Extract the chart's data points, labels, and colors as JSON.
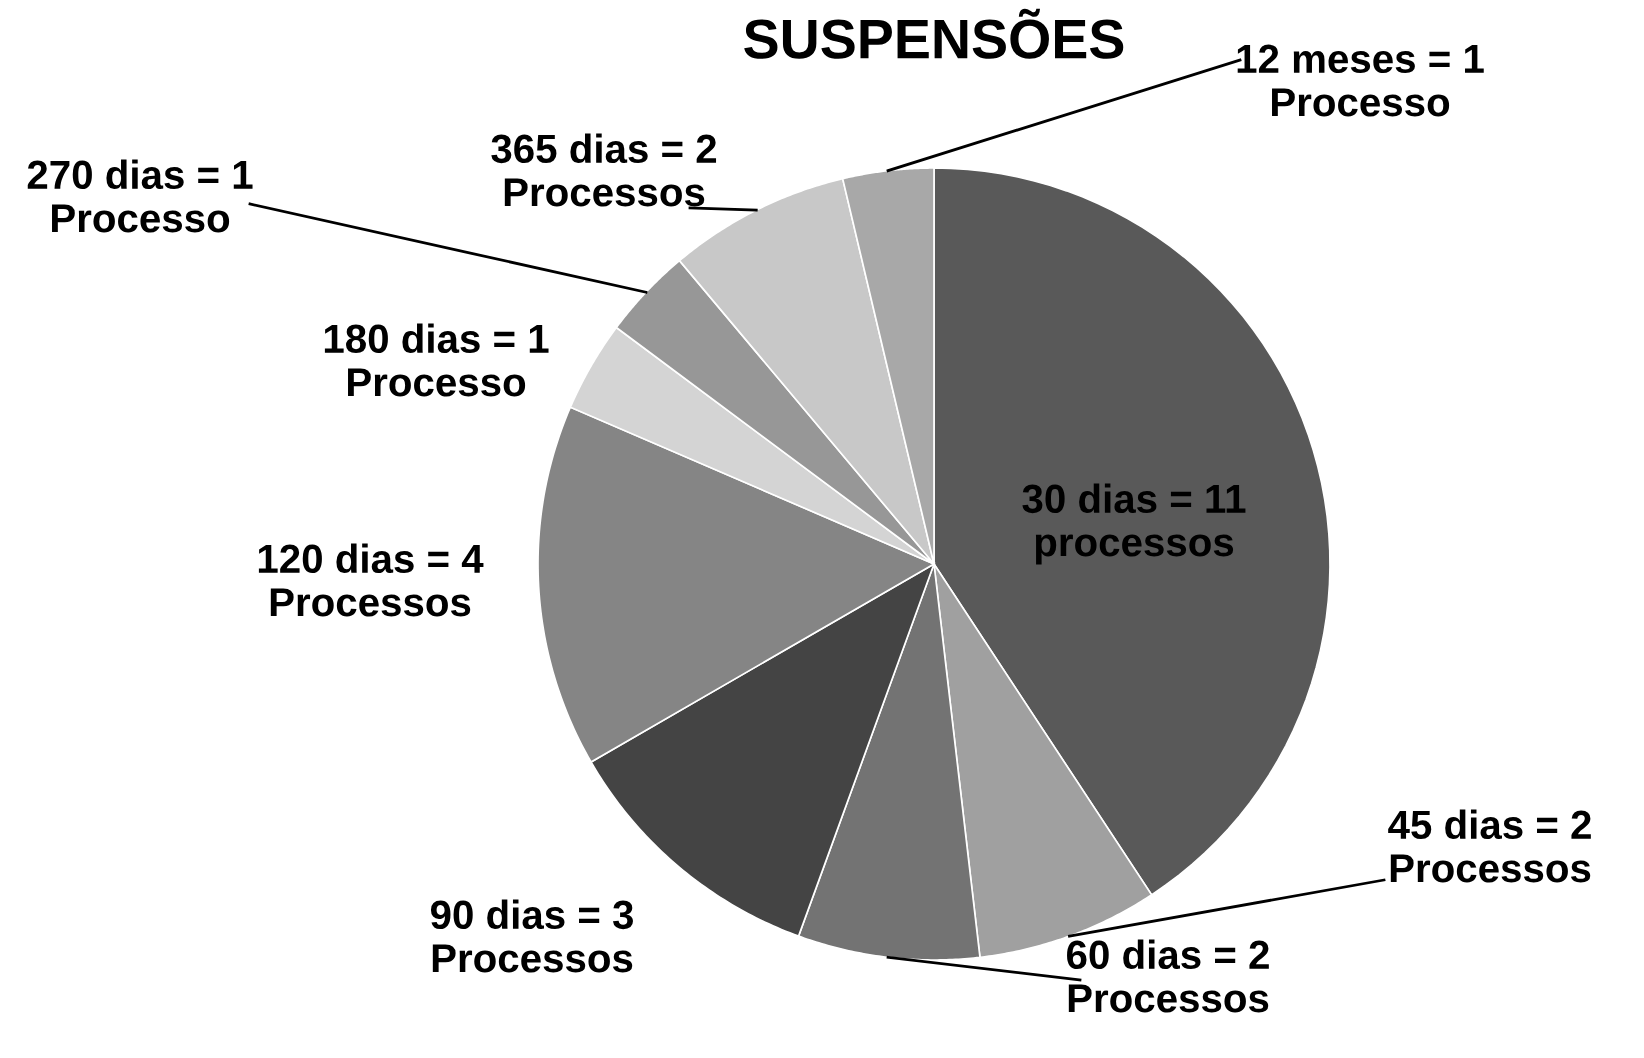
{
  "chart_data": {
    "type": "pie",
    "title": "SUSPENSÕES",
    "categories": [
      "30 dias = 11\nprocessos",
      "45 dias = 2\nProcessos",
      "60 dias = 2\nProcessos",
      "90 dias = 3\nProcessos",
      "120 dias = 4\nProcessos",
      "180 dias = 1\nProcesso",
      "270 dias = 1\nProcesso",
      "365 dias = 2\nProcessos",
      "12 meses = 1\nProcesso"
    ],
    "values": [
      11,
      2,
      2,
      3,
      4,
      1,
      1,
      2,
      1
    ],
    "colors": [
      "#595959",
      "#a0a0a0",
      "#737373",
      "#444444",
      "#858585",
      "#d4d4d4",
      "#979797",
      "#c8c8c8",
      "#a8a8a8"
    ]
  }
}
